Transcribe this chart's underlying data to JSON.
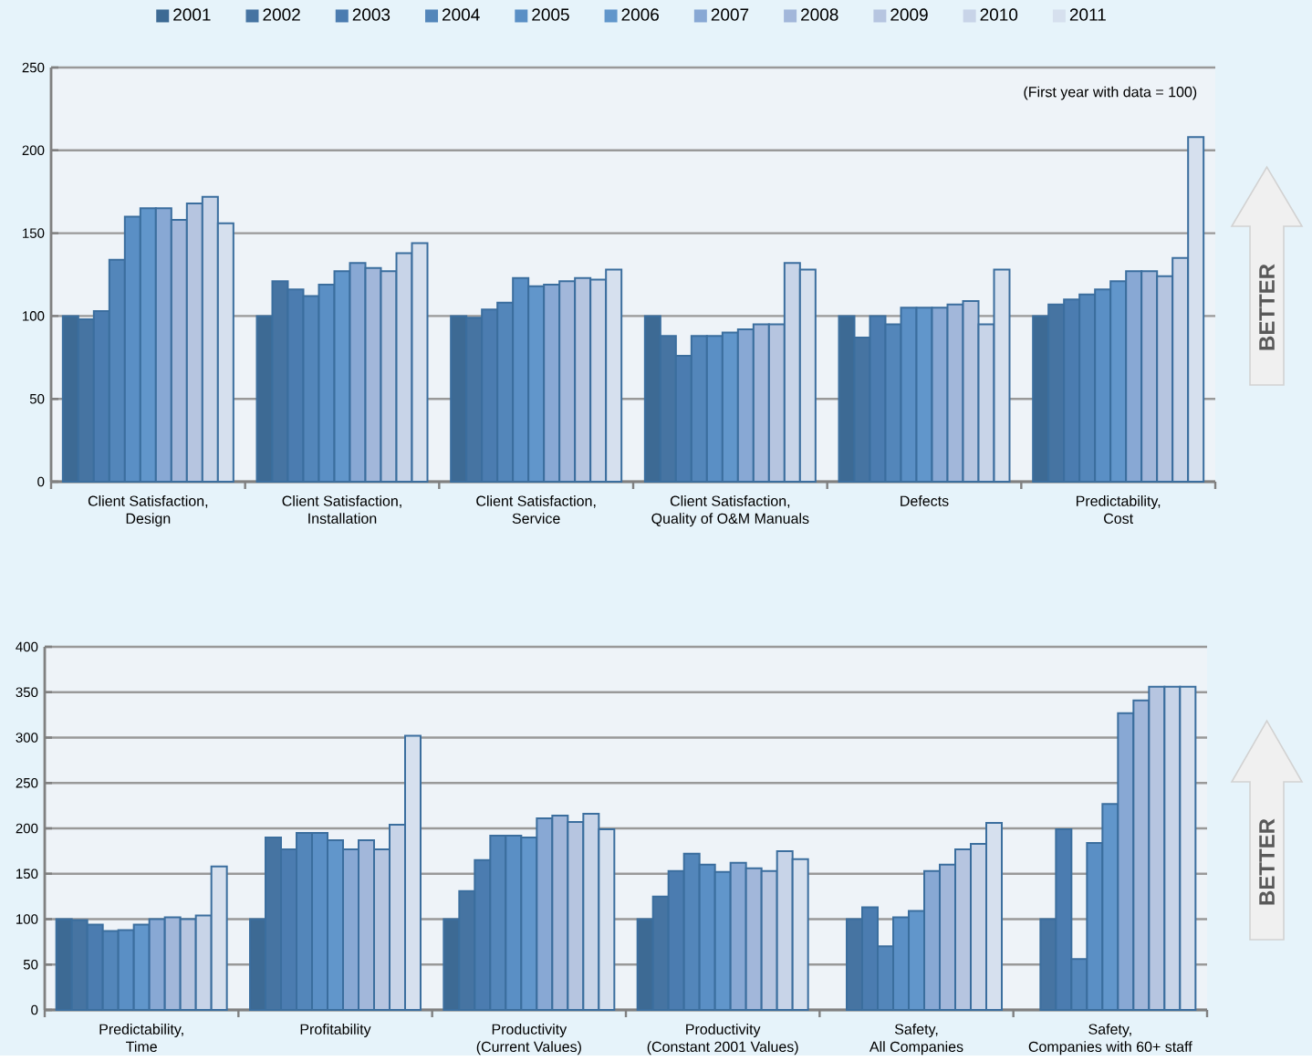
{
  "chart_data": [
    {
      "type": "bar",
      "categories": [
        "Client Satisfaction,\nDesign",
        "Client Satisfaction,\nInstallation",
        "Client Satisfaction,\nService",
        "Client Satisfaction,\nQuality of O&M Manuals",
        "Defects",
        "Predictability,\nCost"
      ],
      "series": [
        {
          "name": "2001",
          "color": "#3d6a94",
          "values": [
            100,
            100,
            100,
            100,
            100,
            100
          ]
        },
        {
          "name": "2002",
          "color": "#4674a2",
          "values": [
            98,
            121,
            99,
            88,
            87,
            107
          ]
        },
        {
          "name": "2003",
          "color": "#4b7cb0",
          "values": [
            103,
            116,
            104,
            76,
            100,
            110
          ]
        },
        {
          "name": "2004",
          "color": "#5386ba",
          "values": [
            134,
            112,
            108,
            88,
            95,
            113
          ]
        },
        {
          "name": "2005",
          "color": "#5a8fc5",
          "values": [
            160,
            119,
            123,
            88,
            105,
            116
          ]
        },
        {
          "name": "2006",
          "color": "#6196cb",
          "values": [
            165,
            127,
            118,
            90,
            105,
            121
          ]
        },
        {
          "name": "2007",
          "color": "#88a8d4",
          "values": [
            165,
            132,
            119,
            92,
            105,
            127
          ]
        },
        {
          "name": "2008",
          "color": "#a2b7da",
          "values": [
            158,
            129,
            121,
            95,
            107,
            127
          ]
        },
        {
          "name": "2009",
          "color": "#b6c5e0",
          "values": [
            168,
            127,
            123,
            95,
            109,
            124
          ]
        },
        {
          "name": "2010",
          "color": "#c8d4e8",
          "values": [
            172,
            138,
            122,
            132,
            95,
            135
          ]
        },
        {
          "name": "2011",
          "color": "#d6e0ee",
          "values": [
            156,
            144,
            128,
            128,
            128,
            208
          ]
        }
      ],
      "ylim": [
        0,
        250
      ],
      "yticks": [
        0,
        50,
        100,
        150,
        200,
        250
      ],
      "grid": "y",
      "legend": "top",
      "annotations": [
        "(First year with data = 100)",
        "BETTER"
      ]
    },
    {
      "type": "bar",
      "categories": [
        "Predictability,\nTime",
        "Profitability",
        "Productivity\n(Current Values)",
        "Productivity\n(Constant 2001 Values)",
        "Safety,\nAll Companies",
        "Safety,\nCompanies with 60+ staff"
      ],
      "series": [
        {
          "color": "#3d6a94",
          "values": [
            100,
            100,
            100,
            100,
            null,
            null
          ]
        },
        {
          "color": "#4674a2",
          "values": [
            99,
            190,
            131,
            125,
            100,
            100
          ]
        },
        {
          "color": "#4b7cb0",
          "values": [
            94,
            177,
            165,
            153,
            113,
            199
          ]
        },
        {
          "color": "#5386ba",
          "values": [
            87,
            195,
            192,
            172,
            70,
            56
          ]
        },
        {
          "color": "#5a8fc5",
          "values": [
            88,
            195,
            192,
            160,
            102,
            184
          ]
        },
        {
          "color": "#6196cb",
          "values": [
            94,
            187,
            190,
            152,
            109,
            227
          ]
        },
        {
          "color": "#88a8d4",
          "values": [
            100,
            177,
            211,
            162,
            153,
            327
          ]
        },
        {
          "color": "#a2b7da",
          "values": [
            102,
            187,
            214,
            156,
            160,
            341
          ]
        },
        {
          "color": "#b6c5e0",
          "values": [
            100,
            177,
            207,
            153,
            177,
            356
          ]
        },
        {
          "color": "#c8d4e8",
          "values": [
            104,
            204,
            216,
            175,
            183,
            356
          ]
        },
        {
          "color": "#d6e0ee",
          "values": [
            158,
            302,
            199,
            166,
            206,
            356
          ]
        }
      ],
      "ylim": [
        0,
        400
      ],
      "yticks": [
        0,
        50,
        100,
        150,
        200,
        250,
        300,
        350,
        400
      ],
      "grid": "y",
      "annotations": [
        "BETTER"
      ]
    }
  ]
}
